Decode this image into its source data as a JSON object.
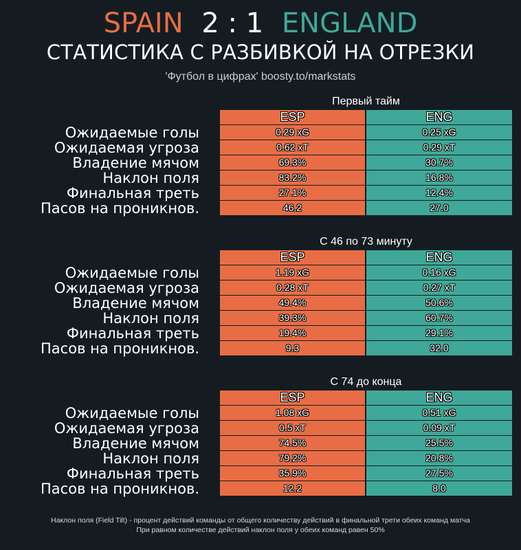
{
  "header": {
    "home_team": "SPAIN",
    "score": "2 : 1",
    "away_team": "ENGLAND",
    "subtitle": "СТАТИСТИКА С РАЗБИВКОЙ НА ОТРЕЗКИ",
    "credit": "'Футбол в цифрах' boosty.to/markstats"
  },
  "colors": {
    "home": "#e86d44",
    "away": "#3fa898",
    "background": "#141c22"
  },
  "columns": {
    "home": "ESP",
    "away": "ENG"
  },
  "metric_labels": [
    "Ожидаемые голы",
    "Ожидаемая угроза",
    "Владение мячом",
    "Наклон поля",
    "Финальная треть",
    "Пасов на проникнов."
  ],
  "sections": [
    {
      "title": "Первый тайм",
      "rows": [
        {
          "home": "0.29 xG",
          "away": "0.25 xG"
        },
        {
          "home": "0.62 xT",
          "away": "0.29 xT"
        },
        {
          "home": "69.3%",
          "away": "30.7%"
        },
        {
          "home": "83.2%",
          "away": "16.8%"
        },
        {
          "home": "27.1%",
          "away": "12.4%"
        },
        {
          "home": "46.2",
          "away": "27.0"
        }
      ]
    },
    {
      "title": "С 46 по 73 минуту",
      "rows": [
        {
          "home": "1.19 xG",
          "away": "0.16 xG"
        },
        {
          "home": "0.28 xT",
          "away": "0.27 xT"
        },
        {
          "home": "49.4%",
          "away": "50.6%"
        },
        {
          "home": "39.3%",
          "away": "60.7%"
        },
        {
          "home": "19.4%",
          "away": "29.1%"
        },
        {
          "home": "9.3",
          "away": "32.0"
        }
      ]
    },
    {
      "title": "С 74 до конца",
      "rows": [
        {
          "home": "1.08 xG",
          "away": "0.51 xG"
        },
        {
          "home": "0.5 xT",
          "away": "0.09 xT"
        },
        {
          "home": "74.5%",
          "away": "25.5%"
        },
        {
          "home": "79.2%",
          "away": "20.8%"
        },
        {
          "home": "35.9%",
          "away": "27.5%"
        },
        {
          "home": "12.2",
          "away": "8.0"
        }
      ]
    }
  ],
  "footnote": {
    "line1": "Наклон поля (Field Tilt) - процент действий команды от общего количеству действий в финальной трети обеих команд матча",
    "line2": "При равном количестве действий наклон поля у обеих команд равен 50%"
  }
}
